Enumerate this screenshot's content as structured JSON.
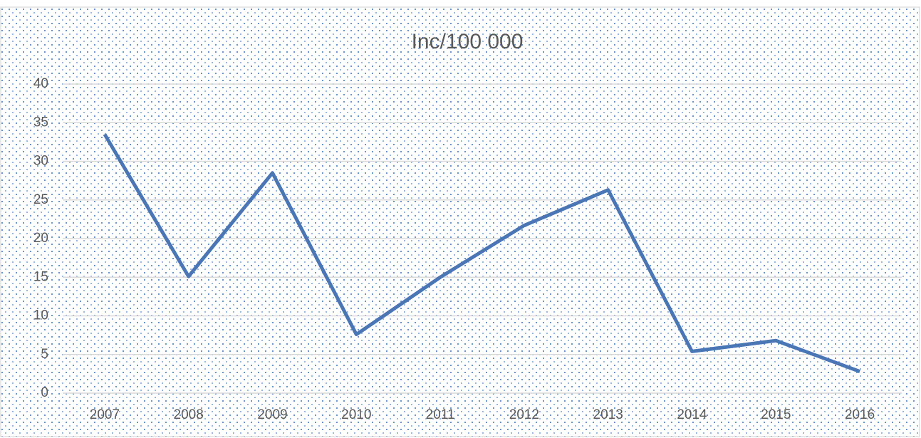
{
  "chart_data": {
    "type": "line",
    "title": "Inc/100 000",
    "categories": [
      "2007",
      "2008",
      "2009",
      "2010",
      "2011",
      "2012",
      "2013",
      "2014",
      "2015",
      "2016"
    ],
    "series": [
      {
        "name": "Inc/100 000",
        "color": "#4a76b5",
        "values": [
          33.5,
          15.1,
          28.5,
          7.6,
          15.0,
          21.7,
          26.3,
          5.4,
          6.8,
          2.8
        ]
      }
    ],
    "ylim": [
      0,
      40
    ],
    "yticks": [
      0,
      5,
      10,
      15,
      20,
      25,
      30,
      35,
      40
    ],
    "grid": true
  }
}
